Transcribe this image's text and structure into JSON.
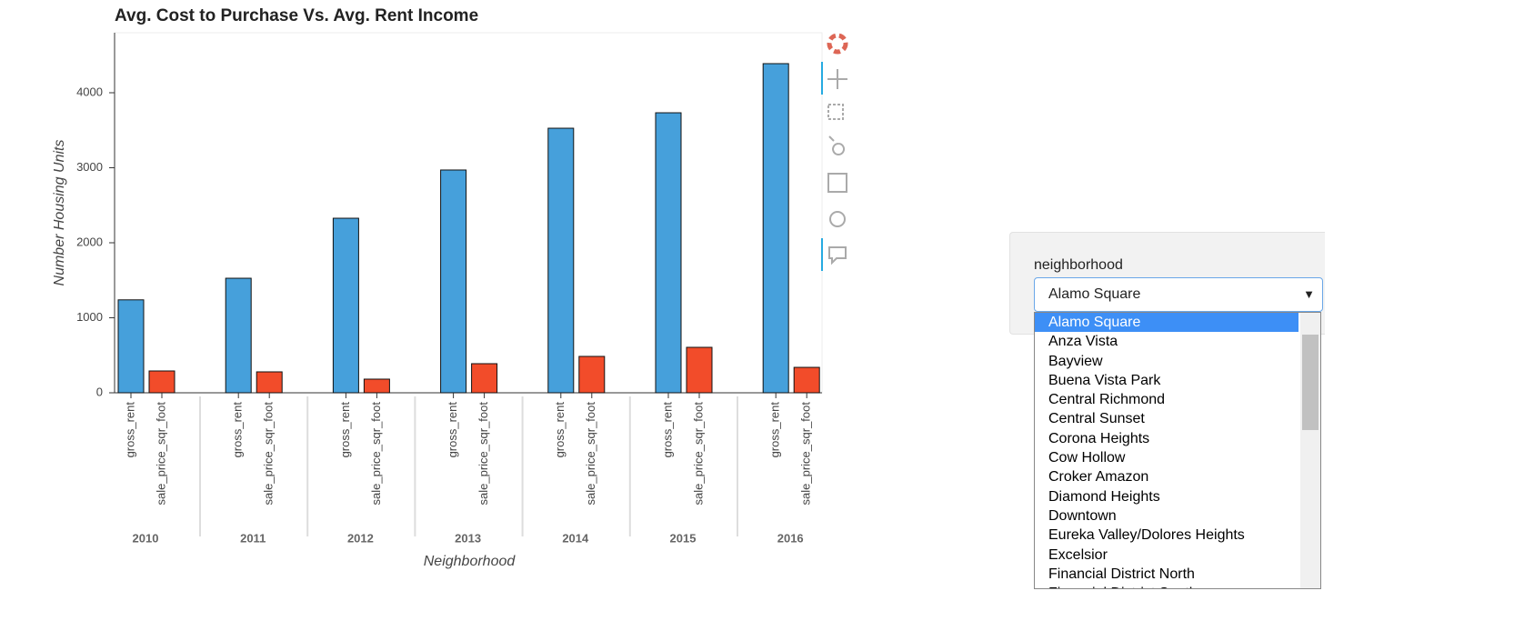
{
  "chart_data": {
    "type": "bar",
    "title": "Avg. Cost to Purchase Vs. Avg. Rent Income",
    "x_label": "Neighborhood",
    "y_label": "Number Housing Units",
    "categories": [
      "2010",
      "2011",
      "2012",
      "2013",
      "2014",
      "2015",
      "2016"
    ],
    "series": [
      {
        "name": "gross_rent",
        "color": "#46a0db",
        "values": [
          1239,
          1527,
          2327,
          2970,
          3527,
          3733,
          4388
        ]
      },
      {
        "name": "sale_price_sqr_foot",
        "color": "#f24c2a",
        "values": [
          291,
          279,
          182,
          388,
          485,
          606,
          339
        ]
      }
    ],
    "ylim": [
      0,
      4800
    ],
    "yticks": [
      0,
      1000,
      2000,
      3000,
      4000
    ]
  },
  "widget": {
    "label": "neighborhood",
    "selected": "Alamo Square",
    "options": [
      "Alamo Square",
      "Anza Vista",
      "Bayview",
      "Buena Vista Park",
      "Central Richmond",
      "Central Sunset",
      "Corona Heights",
      "Cow Hollow",
      "Croker Amazon",
      "Diamond Heights",
      "Downtown",
      "Eureka Valley/Dolores Heights",
      "Excelsior",
      "Financial District North",
      "Financial District South"
    ]
  }
}
